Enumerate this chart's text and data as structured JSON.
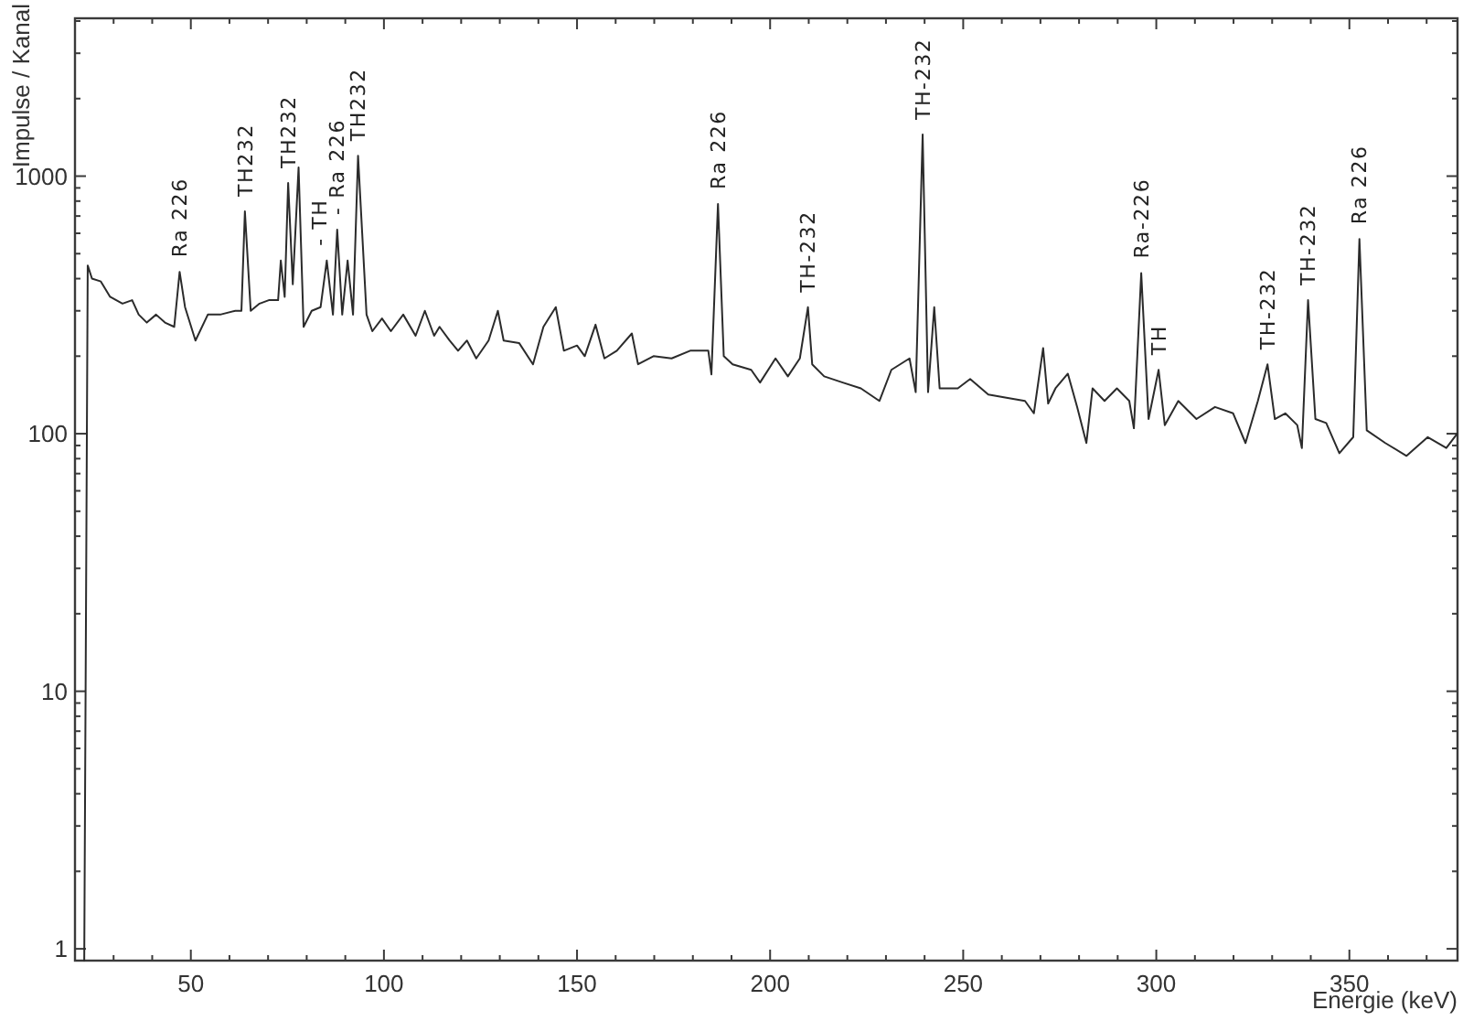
{
  "chart_data": {
    "type": "line",
    "xlabel": "Energie (keV)",
    "ylabel": "Impulse / Kanal",
    "log": "y",
    "color": "#2b2b2b",
    "xlim": [
      20,
      378
    ],
    "ylim": [
      0.9,
      4100
    ],
    "xticks": [
      {
        "value": 20,
        "label": null
      },
      {
        "value": 30,
        "label": null
      },
      {
        "value": 40,
        "label": null
      },
      50,
      {
        "value": 60,
        "label": null
      },
      {
        "value": 70,
        "label": null
      },
      {
        "value": 80,
        "label": null
      },
      {
        "value": 90,
        "label": null
      },
      100,
      {
        "value": 110,
        "label": null
      },
      {
        "value": 120,
        "label": null
      },
      {
        "value": 130,
        "label": null
      },
      {
        "value": 140,
        "label": null
      },
      150,
      {
        "value": 160,
        "label": null
      },
      {
        "value": 170,
        "label": null
      },
      {
        "value": 180,
        "label": null
      },
      {
        "value": 190,
        "label": null
      },
      200,
      {
        "value": 210,
        "label": null
      },
      {
        "value": 220,
        "label": null
      },
      {
        "value": 230,
        "label": null
      },
      {
        "value": 240,
        "label": null
      },
      250,
      {
        "value": 260,
        "label": null
      },
      {
        "value": 270,
        "label": null
      },
      {
        "value": 280,
        "label": null
      },
      {
        "value": 290,
        "label": null
      },
      300,
      {
        "value": 310,
        "label": null
      },
      {
        "value": 320,
        "label": null
      },
      {
        "value": 330,
        "label": null
      },
      {
        "value": 340,
        "label": null
      },
      350,
      {
        "value": 360,
        "label": null
      },
      {
        "value": 370,
        "label": null
      }
    ],
    "yticks": [
      1,
      {
        "value": 2,
        "label": null
      },
      {
        "value": 3,
        "label": null
      },
      {
        "value": 4,
        "label": null
      },
      {
        "value": 5,
        "label": null
      },
      {
        "value": 6,
        "label": null
      },
      {
        "value": 7,
        "label": null
      },
      {
        "value": 8,
        "label": null
      },
      {
        "value": 9,
        "label": null
      },
      10,
      {
        "value": 20,
        "label": null
      },
      {
        "value": 30,
        "label": null
      },
      {
        "value": 40,
        "label": null
      },
      {
        "value": 50,
        "label": null
      },
      {
        "value": 60,
        "label": null
      },
      {
        "value": 70,
        "label": null
      },
      {
        "value": 80,
        "label": null
      },
      {
        "value": 90,
        "label": null
      },
      100,
      {
        "value": 200,
        "label": null
      },
      {
        "value": 300,
        "label": null
      },
      {
        "value": 400,
        "label": null
      },
      {
        "value": 500,
        "label": null
      },
      {
        "value": 600,
        "label": null
      },
      {
        "value": 700,
        "label": null
      },
      {
        "value": 800,
        "label": null
      },
      {
        "value": 900,
        "label": null
      },
      1000,
      {
        "value": 2000,
        "label": null
      },
      {
        "value": 3000,
        "label": null
      },
      {
        "value": 4000,
        "label": null
      }
    ],
    "x": [
      22.4,
      23.3,
      24.4,
      26.7,
      29.1,
      32.3,
      34.8,
      36.5,
      38.6,
      41,
      43.3,
      45.7,
      47.1,
      48.5,
      51.2,
      54.4,
      57.6,
      61.5,
      63.1,
      64,
      65.5,
      67.8,
      70.2,
      72.6,
      73.3,
      74.3,
      75.2,
      76.4,
      77.9,
      79.2,
      81.3,
      83.6,
      85.2,
      86.8,
      87.9,
      89.2,
      90.6,
      92,
      93.3,
      95.5,
      97,
      99.5,
      101.8,
      105,
      108.2,
      110.6,
      113,
      114.4,
      117,
      119.2,
      121.5,
      123.9,
      127.1,
      129.5,
      131,
      135,
      138.6,
      141.3,
      144.5,
      146.6,
      150,
      152,
      154.8,
      157.1,
      160.3,
      164.2,
      165.8,
      169.8,
      174.5,
      179.3,
      184,
      184.8,
      186.5,
      188,
      190.3,
      195.1,
      197.4,
      201.4,
      204.6,
      207.7,
      209.8,
      210.9,
      214,
      218.8,
      223.5,
      228.3,
      231.4,
      236.1,
      237.7,
      239.5,
      240.9,
      242.5,
      243.9,
      248.6,
      251.8,
      256.5,
      261.2,
      266,
      268.3,
      270.7,
      272,
      273.9,
      277.1,
      279.5,
      281.9,
      283.5,
      286.6,
      289.8,
      293,
      294.2,
      296.1,
      298,
      300.6,
      302.2,
      305.7,
      310.4,
      315.2,
      319.9,
      323.1,
      326.3,
      328.8,
      330.7,
      333.4,
      336.5,
      337.7,
      339.3,
      341.2,
      344,
      347.4,
      351,
      352.6,
      354.5,
      359.3,
      364.8,
      370.3,
      375.1,
      377.9
    ],
    "values": [
      0.9,
      450,
      400,
      390,
      340,
      320,
      330,
      290,
      270,
      290,
      270,
      260,
      425,
      310,
      230,
      290,
      290,
      300,
      300,
      730,
      300,
      320,
      330,
      330,
      470,
      340,
      940,
      380,
      1080,
      260,
      300,
      310,
      470,
      290,
      620,
      290,
      470,
      290,
      1200,
      290,
      250,
      280,
      250,
      290,
      240,
      300,
      240,
      260,
      230,
      210,
      230,
      196,
      230,
      300,
      230,
      225,
      186,
      260,
      310,
      210,
      220,
      200,
      265,
      196,
      210,
      245,
      186,
      200,
      196,
      210,
      210,
      170,
      780,
      200,
      186,
      177,
      158,
      196,
      167,
      196,
      310,
      186,
      167,
      158,
      150,
      134,
      177,
      196,
      145,
      1450,
      145,
      310,
      150,
      150,
      163,
      142,
      138,
      134,
      120,
      215,
      131,
      150,
      171,
      127,
      92,
      150,
      134,
      150,
      134,
      105,
      420,
      114,
      177,
      108,
      134,
      114,
      127,
      120,
      92,
      134,
      186,
      114,
      120,
      108,
      88,
      330,
      114,
      110,
      84,
      97,
      570,
      103,
      92,
      82,
      97,
      88,
      100
    ],
    "annotations": [
      {
        "text": "Ra 226",
        "x": 47.1,
        "y": 425
      },
      {
        "text": "TH232",
        "x": 64,
        "y": 730
      },
      {
        "text": "TH232",
        "x": 75.2,
        "y": 940
      },
      {
        "text": "- TH",
        "x": 85.2,
        "y": 470
      },
      {
        "text": "- Ra 226",
        "x": 87.9,
        "y": 620
      },
      {
        "text": "TH232",
        "x": 93.3,
        "y": 1200
      },
      {
        "text": "Ra 226",
        "x": 186.5,
        "y": 780
      },
      {
        "text": "TH-232",
        "x": 209.8,
        "y": 310
      },
      {
        "text": "TH-232",
        "x": 239.5,
        "y": 1450
      },
      {
        "text": "Ra-226",
        "x": 296.1,
        "y": 420
      },
      {
        "text": "TH",
        "x": 300.6,
        "y": 177
      },
      {
        "text": "TH-232",
        "x": 328.8,
        "y": 186
      },
      {
        "text": "TH-232",
        "x": 339.3,
        "y": 330
      },
      {
        "text": "Ra 226",
        "x": 352.6,
        "y": 570
      }
    ]
  }
}
